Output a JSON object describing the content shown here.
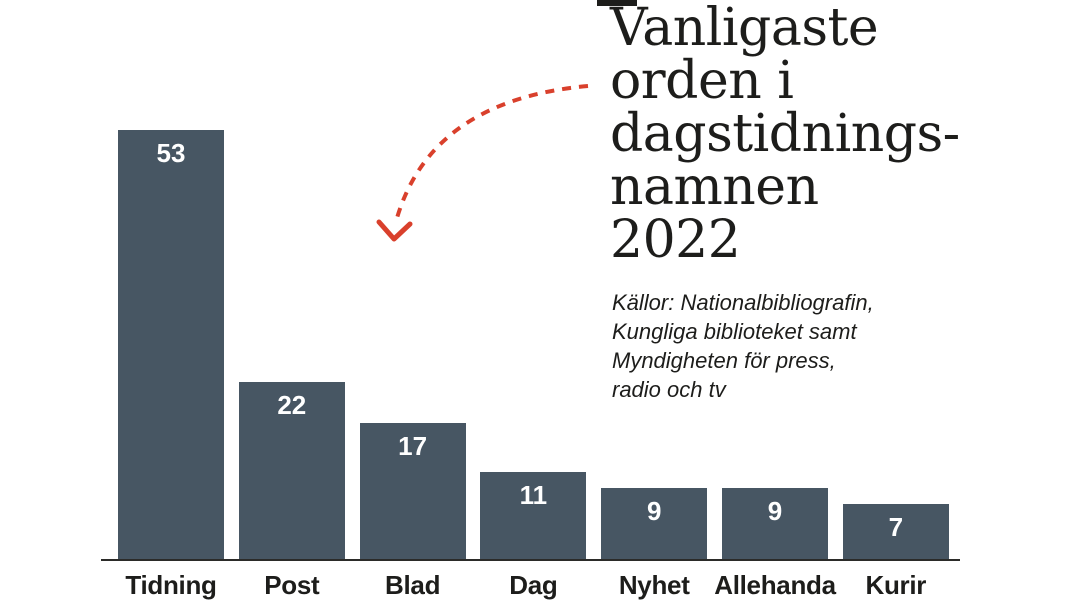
{
  "title": {
    "text": "Vanligaste\norden i\ndagstidnings-\nnamnen\n2022"
  },
  "source": {
    "text": "Källor: Nationalbibliografin,\nKungliga biblioteket samt\nMyndigheten för press,\nradio och tv"
  },
  "annotation_arrow": {
    "icon": "dashed-curved-arrow",
    "color": "#d9402c"
  },
  "colors": {
    "bar": "#475663",
    "axis": "#2b2b29",
    "text": "#1d1d1b",
    "value_label": "#ffffff",
    "background": "#ffffff"
  },
  "chart_data": {
    "type": "bar",
    "categories": [
      "Tidning",
      "Post",
      "Blad",
      "Dag",
      "Nyhet",
      "Allehanda",
      "Kurir"
    ],
    "values": [
      53,
      22,
      17,
      11,
      9,
      9,
      7
    ],
    "title": "Vanligaste orden i dagstidningsnamnen 2022",
    "source": "Källor: Nationalbibliografin, Kungliga biblioteket samt Myndigheten för press, radio och tv",
    "xlabel": "",
    "ylabel": "",
    "ylim": [
      0,
      53
    ],
    "grid": false,
    "legend": false,
    "value_labels_position": "inside-top",
    "bar_color": "#475663"
  }
}
